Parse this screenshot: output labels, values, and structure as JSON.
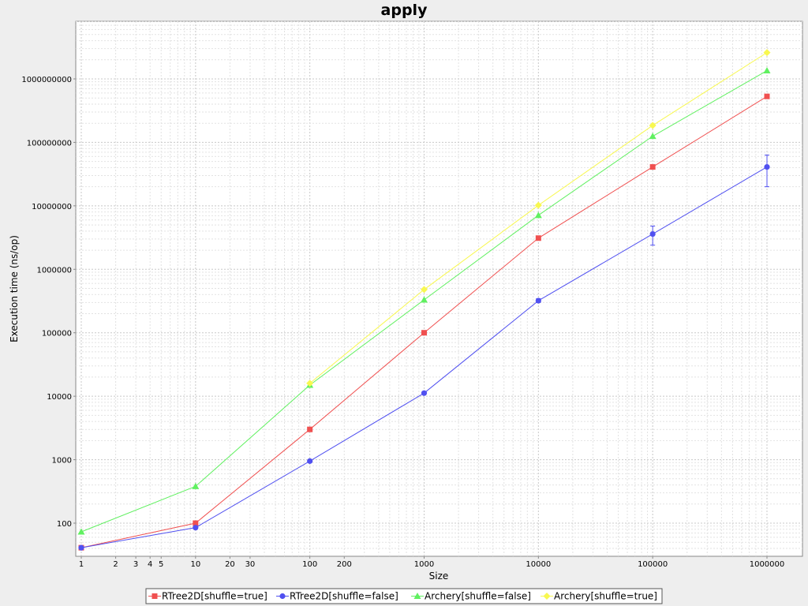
{
  "chart_data": {
    "type": "line",
    "title": "apply",
    "xlabel": "Size",
    "ylabel": "Execution time (ns/op)",
    "x_scale": "log",
    "y_scale": "log",
    "xlim": [
      1,
      1000000
    ],
    "ylim": [
      30,
      6000000000
    ],
    "grid": true,
    "legend_placement": "bottom",
    "x_tick_labels": [
      {
        "value": 1,
        "label": "1"
      },
      {
        "value": 2,
        "label": "2"
      },
      {
        "value": 3,
        "label": "3"
      },
      {
        "value": 4,
        "label": "4"
      },
      {
        "value": 5,
        "label": "5"
      },
      {
        "value": 10,
        "label": "10"
      },
      {
        "value": 20,
        "label": "20"
      },
      {
        "value": 30,
        "label": "30"
      },
      {
        "value": 100,
        "label": "100"
      },
      {
        "value": 200,
        "label": "200"
      },
      {
        "value": 1000,
        "label": "1000"
      },
      {
        "value": 10000,
        "label": "10000"
      },
      {
        "value": 100000,
        "label": "100000"
      },
      {
        "value": 1000000,
        "label": "1000000"
      }
    ],
    "y_tick_labels": [
      {
        "value": 100,
        "label": "100"
      },
      {
        "value": 1000,
        "label": "1000"
      },
      {
        "value": 10000,
        "label": "10000"
      },
      {
        "value": 100000,
        "label": "100000"
      },
      {
        "value": 1000000,
        "label": "1000000"
      },
      {
        "value": 10000000,
        "label": "10000000"
      },
      {
        "value": 100000000,
        "label": "100000000"
      },
      {
        "value": 1000000000,
        "label": "1000000000"
      }
    ],
    "series": [
      {
        "name": "RTree2D[shuffle=true]",
        "color": "#f05050",
        "marker": "square",
        "x": [
          1,
          10,
          100,
          1000,
          10000,
          100000,
          1000000
        ],
        "y": [
          41,
          100,
          3000,
          100000,
          3100000,
          41000000,
          530000000
        ]
      },
      {
        "name": "RTree2D[shuffle=false]",
        "color": "#5050f0",
        "marker": "circle",
        "x": [
          1,
          10,
          100,
          1000,
          10000,
          100000,
          1000000
        ],
        "y": [
          41,
          85,
          950,
          11200,
          320000,
          3600000,
          41000000
        ],
        "error": [
          null,
          null,
          null,
          null,
          [
            300000,
            345000
          ],
          [
            2400000,
            4800000
          ],
          [
            20000000,
            63000000
          ]
        ]
      },
      {
        "name": "Archery[shuffle=false]",
        "color": "#60f060",
        "marker": "triangle",
        "x": [
          1,
          10,
          100,
          1000,
          10000,
          100000,
          1000000
        ],
        "y": [
          73,
          380,
          15000,
          330000,
          7100000,
          125000000,
          1350000000
        ]
      },
      {
        "name": "Archery[shuffle=true]",
        "color": "#f8f850",
        "marker": "diamond",
        "x": [
          100,
          1000,
          10000,
          100000,
          1000000
        ],
        "y": [
          16000,
          480000,
          10200000,
          185000000,
          2600000000
        ]
      }
    ]
  }
}
